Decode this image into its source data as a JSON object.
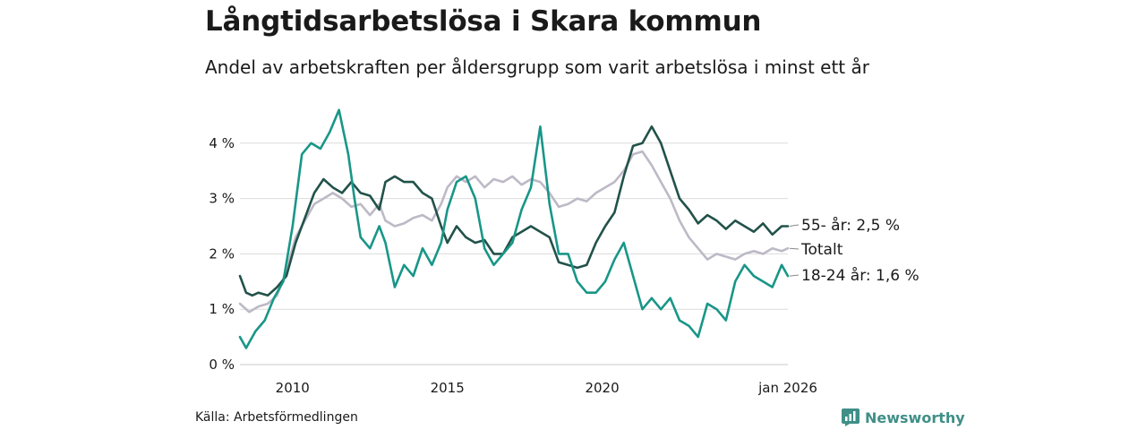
{
  "title": "Långtidsarbetslösa i Skara kommun",
  "subtitle": "Andel av arbetskraften per åldersgrupp som varit arbetslösa i minst ett år",
  "source": "Källa: Arbetsförmedlingen",
  "brand": "Newsworthy",
  "chart_data": {
    "type": "line",
    "title": "Långtidsarbetslösa i Skara kommun",
    "subtitle": "Andel av arbetskraften per åldersgrupp som varit arbetslösa i minst ett år",
    "xlabel": "",
    "ylabel": "",
    "xlim": [
      2008.3,
      2026.0
    ],
    "ylim": [
      0,
      4.6
    ],
    "y_ticks": [
      0,
      1,
      2,
      3,
      4
    ],
    "y_tick_labels": [
      "0 %",
      "1 %",
      "2 %",
      "3 %",
      "4 %"
    ],
    "x_ticks": [
      2010,
      2015,
      2020,
      2026.0
    ],
    "x_tick_labels": [
      "2010",
      "2015",
      "2020",
      "jan 2026"
    ],
    "grid": true,
    "series": [
      {
        "name": "Totalt",
        "label": "Totalt",
        "color": "#bdb9c6",
        "points": [
          [
            2008.3,
            1.1
          ],
          [
            2008.6,
            0.95
          ],
          [
            2008.9,
            1.05
          ],
          [
            2009.2,
            1.1
          ],
          [
            2009.5,
            1.25
          ],
          [
            2009.8,
            1.7
          ],
          [
            2010.1,
            2.3
          ],
          [
            2010.4,
            2.6
          ],
          [
            2010.7,
            2.9
          ],
          [
            2011.0,
            3.0
          ],
          [
            2011.3,
            3.1
          ],
          [
            2011.6,
            3.0
          ],
          [
            2011.9,
            2.85
          ],
          [
            2012.2,
            2.9
          ],
          [
            2012.5,
            2.7
          ],
          [
            2012.8,
            2.9
          ],
          [
            2013.0,
            2.6
          ],
          [
            2013.3,
            2.5
          ],
          [
            2013.6,
            2.55
          ],
          [
            2013.9,
            2.65
          ],
          [
            2014.2,
            2.7
          ],
          [
            2014.5,
            2.6
          ],
          [
            2014.8,
            2.9
          ],
          [
            2015.0,
            3.2
          ],
          [
            2015.3,
            3.4
          ],
          [
            2015.6,
            3.3
          ],
          [
            2015.9,
            3.4
          ],
          [
            2016.2,
            3.2
          ],
          [
            2016.5,
            3.35
          ],
          [
            2016.8,
            3.3
          ],
          [
            2017.1,
            3.4
          ],
          [
            2017.4,
            3.25
          ],
          [
            2017.7,
            3.35
          ],
          [
            2018.0,
            3.3
          ],
          [
            2018.3,
            3.1
          ],
          [
            2018.6,
            2.85
          ],
          [
            2018.9,
            2.9
          ],
          [
            2019.2,
            3.0
          ],
          [
            2019.5,
            2.95
          ],
          [
            2019.8,
            3.1
          ],
          [
            2020.1,
            3.2
          ],
          [
            2020.4,
            3.3
          ],
          [
            2020.7,
            3.5
          ],
          [
            2021.0,
            3.8
          ],
          [
            2021.3,
            3.85
          ],
          [
            2021.6,
            3.6
          ],
          [
            2021.9,
            3.3
          ],
          [
            2022.2,
            3.0
          ],
          [
            2022.5,
            2.6
          ],
          [
            2022.8,
            2.3
          ],
          [
            2023.1,
            2.1
          ],
          [
            2023.4,
            1.9
          ],
          [
            2023.7,
            2.0
          ],
          [
            2024.0,
            1.95
          ],
          [
            2024.3,
            1.9
          ],
          [
            2024.6,
            2.0
          ],
          [
            2024.9,
            2.05
          ],
          [
            2025.2,
            2.0
          ],
          [
            2025.5,
            2.1
          ],
          [
            2025.8,
            2.05
          ],
          [
            2026.0,
            2.1
          ]
        ]
      },
      {
        "name": "55- år",
        "label": "55- år: 2,5 %",
        "color": "#22524a",
        "points": [
          [
            2008.3,
            1.6
          ],
          [
            2008.5,
            1.3
          ],
          [
            2008.7,
            1.25
          ],
          [
            2008.9,
            1.3
          ],
          [
            2009.2,
            1.25
          ],
          [
            2009.5,
            1.4
          ],
          [
            2009.8,
            1.6
          ],
          [
            2010.1,
            2.2
          ],
          [
            2010.4,
            2.65
          ],
          [
            2010.7,
            3.1
          ],
          [
            2011.0,
            3.35
          ],
          [
            2011.3,
            3.2
          ],
          [
            2011.6,
            3.1
          ],
          [
            2011.9,
            3.3
          ],
          [
            2012.2,
            3.1
          ],
          [
            2012.5,
            3.05
          ],
          [
            2012.8,
            2.8
          ],
          [
            2013.0,
            3.3
          ],
          [
            2013.3,
            3.4
          ],
          [
            2013.6,
            3.3
          ],
          [
            2013.9,
            3.3
          ],
          [
            2014.2,
            3.1
          ],
          [
            2014.5,
            3.0
          ],
          [
            2014.8,
            2.5
          ],
          [
            2015.0,
            2.2
          ],
          [
            2015.3,
            2.5
          ],
          [
            2015.6,
            2.3
          ],
          [
            2015.9,
            2.2
          ],
          [
            2016.2,
            2.25
          ],
          [
            2016.5,
            2.0
          ],
          [
            2016.8,
            2.0
          ],
          [
            2017.1,
            2.3
          ],
          [
            2017.4,
            2.4
          ],
          [
            2017.7,
            2.5
          ],
          [
            2018.0,
            2.4
          ],
          [
            2018.3,
            2.3
          ],
          [
            2018.6,
            1.85
          ],
          [
            2018.9,
            1.8
          ],
          [
            2019.2,
            1.75
          ],
          [
            2019.5,
            1.8
          ],
          [
            2019.8,
            2.2
          ],
          [
            2020.1,
            2.5
          ],
          [
            2020.4,
            2.75
          ],
          [
            2020.7,
            3.4
          ],
          [
            2021.0,
            3.95
          ],
          [
            2021.3,
            4.0
          ],
          [
            2021.6,
            4.3
          ],
          [
            2021.9,
            4.0
          ],
          [
            2022.2,
            3.5
          ],
          [
            2022.5,
            3.0
          ],
          [
            2022.8,
            2.8
          ],
          [
            2023.1,
            2.55
          ],
          [
            2023.4,
            2.7
          ],
          [
            2023.7,
            2.6
          ],
          [
            2024.0,
            2.45
          ],
          [
            2024.3,
            2.6
          ],
          [
            2024.6,
            2.5
          ],
          [
            2024.9,
            2.4
          ],
          [
            2025.2,
            2.55
          ],
          [
            2025.5,
            2.35
          ],
          [
            2025.8,
            2.5
          ],
          [
            2026.0,
            2.5
          ]
        ]
      },
      {
        "name": "18-24 år",
        "label": "18-24 år: 1,6 %",
        "color": "#189688",
        "points": [
          [
            2008.3,
            0.5
          ],
          [
            2008.5,
            0.3
          ],
          [
            2008.8,
            0.6
          ],
          [
            2009.1,
            0.8
          ],
          [
            2009.4,
            1.2
          ],
          [
            2009.7,
            1.5
          ],
          [
            2010.0,
            2.5
          ],
          [
            2010.3,
            3.8
          ],
          [
            2010.6,
            4.0
          ],
          [
            2010.9,
            3.9
          ],
          [
            2011.2,
            4.2
          ],
          [
            2011.5,
            4.6
          ],
          [
            2011.8,
            3.8
          ],
          [
            2012.0,
            3.0
          ],
          [
            2012.2,
            2.3
          ],
          [
            2012.5,
            2.1
          ],
          [
            2012.8,
            2.5
          ],
          [
            2013.0,
            2.2
          ],
          [
            2013.3,
            1.4
          ],
          [
            2013.6,
            1.8
          ],
          [
            2013.9,
            1.6
          ],
          [
            2014.2,
            2.1
          ],
          [
            2014.5,
            1.8
          ],
          [
            2014.8,
            2.2
          ],
          [
            2015.0,
            2.8
          ],
          [
            2015.3,
            3.3
          ],
          [
            2015.6,
            3.4
          ],
          [
            2015.9,
            3.0
          ],
          [
            2016.2,
            2.1
          ],
          [
            2016.5,
            1.8
          ],
          [
            2016.8,
            2.0
          ],
          [
            2017.1,
            2.2
          ],
          [
            2017.4,
            2.8
          ],
          [
            2017.7,
            3.2
          ],
          [
            2018.0,
            4.3
          ],
          [
            2018.3,
            2.9
          ],
          [
            2018.6,
            2.0
          ],
          [
            2018.9,
            2.0
          ],
          [
            2019.2,
            1.5
          ],
          [
            2019.5,
            1.3
          ],
          [
            2019.8,
            1.3
          ],
          [
            2020.1,
            1.5
          ],
          [
            2020.4,
            1.9
          ],
          [
            2020.7,
            2.2
          ],
          [
            2021.0,
            1.6
          ],
          [
            2021.3,
            1.0
          ],
          [
            2021.6,
            1.2
          ],
          [
            2021.9,
            1.0
          ],
          [
            2022.2,
            1.2
          ],
          [
            2022.5,
            0.8
          ],
          [
            2022.8,
            0.7
          ],
          [
            2023.1,
            0.5
          ],
          [
            2023.4,
            1.1
          ],
          [
            2023.7,
            1.0
          ],
          [
            2024.0,
            0.8
          ],
          [
            2024.3,
            1.5
          ],
          [
            2024.6,
            1.8
          ],
          [
            2024.9,
            1.6
          ],
          [
            2025.2,
            1.5
          ],
          [
            2025.5,
            1.4
          ],
          [
            2025.8,
            1.8
          ],
          [
            2026.0,
            1.6
          ]
        ]
      }
    ]
  },
  "icons": {
    "brand": "bar-chart-logo-icon"
  }
}
